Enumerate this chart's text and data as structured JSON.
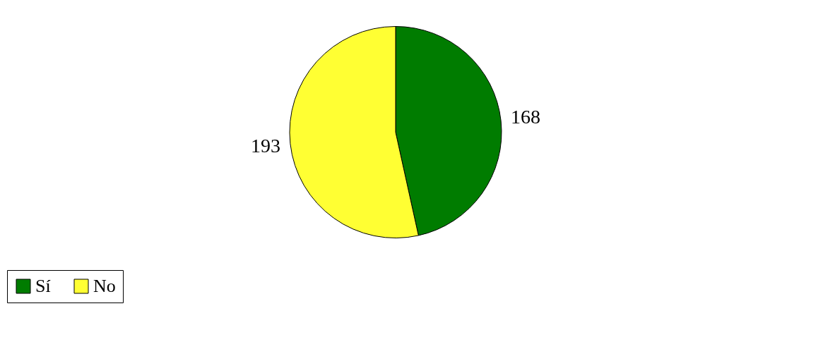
{
  "chart_data": {
    "type": "pie",
    "categories": [
      "Sí",
      "No"
    ],
    "values": [
      168,
      193
    ],
    "colors": [
      "#007c00",
      "#ffff33"
    ],
    "data_labels": true,
    "legend": "bottom"
  }
}
